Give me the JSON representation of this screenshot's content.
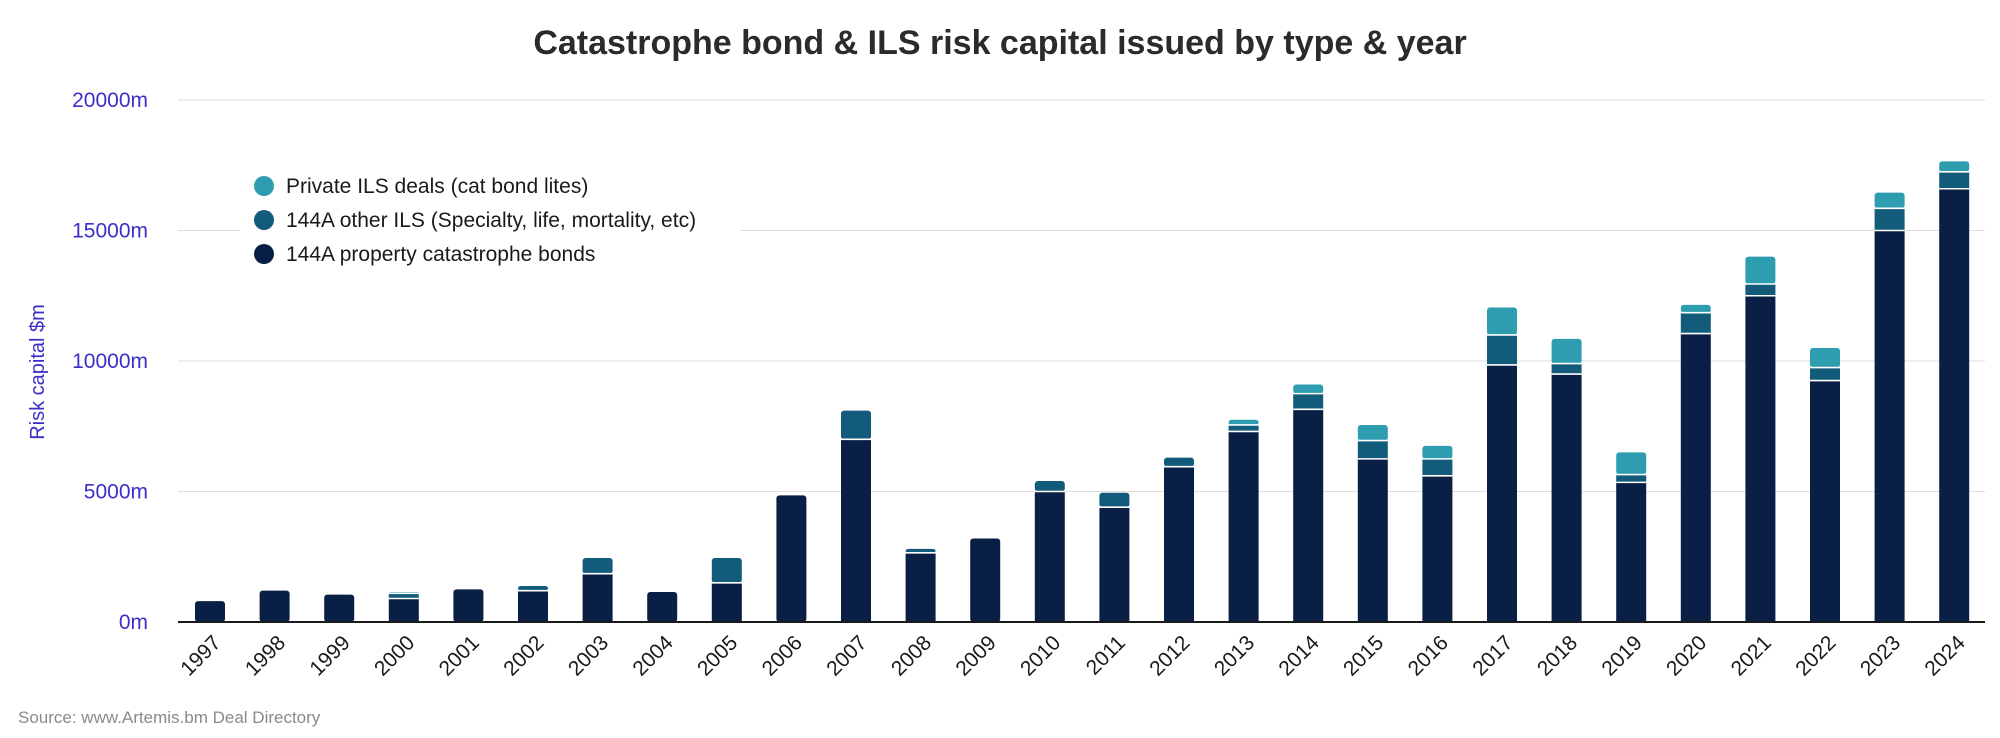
{
  "title": "Catastrophe bond & ILS risk capital issued by type & year",
  "source": "Source: www.Artemis.bm Deal Directory",
  "colors": {
    "property": "#0a1f45",
    "other": "#135b7b",
    "private": "#2e9db0",
    "axis_text": "#3b2fc9",
    "grid": "#dedede",
    "tick_text": "#1a1a1a"
  },
  "chart_data": {
    "type": "bar",
    "stacked": true,
    "title": "Catastrophe bond & ILS risk capital issued by type & year",
    "ylabel": "Risk capital $m",
    "xlabel": "",
    "ylim": [
      0,
      20000
    ],
    "yticks": [
      0,
      5000,
      10000,
      15000,
      20000
    ],
    "ytick_labels": [
      "0m",
      "5000m",
      "10000m",
      "15000m",
      "20000m"
    ],
    "grid": true,
    "legend_position": "top-left",
    "categories": [
      "1997",
      "1998",
      "1999",
      "2000",
      "2001",
      "2002",
      "2003",
      "2004",
      "2005",
      "2006",
      "2007",
      "2008",
      "2009",
      "2010",
      "2011",
      "2012",
      "2013",
      "2014",
      "2015",
      "2016",
      "2017",
      "2018",
      "2019",
      "2020",
      "2021",
      "2022",
      "2023",
      "2024"
    ],
    "series": [
      {
        "name": "144A property catastrophe bonds",
        "key": "property",
        "values": [
          800,
          1200,
          1050,
          900,
          1250,
          1200,
          1850,
          1150,
          1500,
          4850,
          7000,
          2650,
          3200,
          5000,
          4400,
          5950,
          7300,
          8150,
          6250,
          5600,
          9850,
          9500,
          5350,
          11050,
          12500,
          9250,
          15000,
          16600
        ]
      },
      {
        "name": "144A other ILS (Specialty, life, mortality, etc)",
        "key": "other",
        "values": [
          0,
          0,
          0,
          200,
          0,
          180,
          600,
          0,
          950,
          0,
          1100,
          150,
          0,
          400,
          550,
          350,
          250,
          600,
          700,
          650,
          1150,
          400,
          300,
          800,
          450,
          500,
          850,
          650
        ]
      },
      {
        "name": "Private ILS deals (cat bond lites)",
        "key": "private",
        "values": [
          0,
          0,
          0,
          50,
          0,
          0,
          0,
          0,
          0,
          0,
          0,
          0,
          0,
          0,
          0,
          0,
          200,
          350,
          600,
          500,
          1050,
          950,
          850,
          300,
          1050,
          750,
          600,
          400
        ]
      }
    ],
    "legend_order": [
      "private",
      "other",
      "property"
    ]
  }
}
